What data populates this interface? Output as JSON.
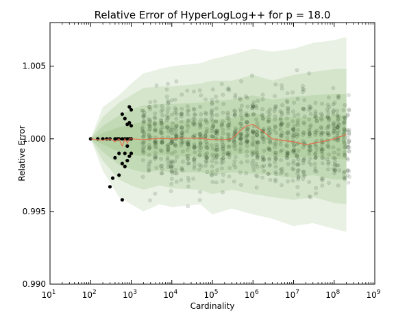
{
  "chart_data": {
    "type": "scatter",
    "title": "Relative Error of HyperLogLog++ for p = 18.0",
    "xlabel": "Cardinality",
    "ylabel": "Relative Error",
    "x_scale": "log",
    "xlim_exponent": [
      1,
      9
    ],
    "ylim": [
      0.99,
      1.008
    ],
    "x_ticks": [
      {
        "base": "10",
        "exp": "1"
      },
      {
        "base": "10",
        "exp": "2"
      },
      {
        "base": "10",
        "exp": "3"
      },
      {
        "base": "10",
        "exp": "4"
      },
      {
        "base": "10",
        "exp": "5"
      },
      {
        "base": "10",
        "exp": "6"
      },
      {
        "base": "10",
        "exp": "7"
      },
      {
        "base": "10",
        "exp": "8"
      },
      {
        "base": "10",
        "exp": "9"
      }
    ],
    "y_ticks": [
      "0.990",
      "0.995",
      "1.000",
      "1.005"
    ],
    "y_tick_values": [
      0.99,
      0.995,
      1.0,
      1.005
    ],
    "grid": false,
    "colors": {
      "band": "#5a9a3a",
      "median": "#e8704c",
      "point": "#000000"
    },
    "median_line": {
      "x": [
        100,
        200,
        300,
        400,
        500,
        600,
        700,
        800,
        900,
        1000,
        2000,
        5000,
        10000,
        20000,
        50000,
        100000,
        200000,
        300000,
        500000,
        700000,
        1000000,
        2000000,
        3000000,
        5000000,
        10000000,
        20000000,
        50000000,
        100000000,
        200000000
      ],
      "y": [
        1.0,
        0.9999,
        1.0,
        0.9998,
        1.0,
        0.9995,
        1.0,
        0.9997,
        1.0,
        1.0,
        0.99995,
        1.00003,
        1.0,
        1.00005,
        1.00003,
        0.99995,
        0.99995,
        1.0,
        1.0006,
        1.0009,
        1.001,
        1.0004,
        1.0,
        0.9999,
        0.9998,
        0.9996,
        0.9998,
        1.0,
        1.0003
      ]
    },
    "percentile_bands": [
      {
        "x": [
          100,
          200,
          500,
          1000,
          2000,
          5000,
          10000,
          50000,
          100000,
          300000,
          1000000,
          3000000,
          10000000,
          30000000,
          100000000,
          200000000
        ],
        "lower": [
          1.0,
          0.9978,
          0.996,
          0.9955,
          0.995,
          0.9955,
          0.9953,
          0.9955,
          0.9948,
          0.9952,
          0.9948,
          0.9945,
          0.994,
          0.9942,
          0.9938,
          0.9936
        ],
        "upper": [
          1.0,
          1.0022,
          1.003,
          1.0038,
          1.0045,
          1.0048,
          1.005,
          1.0052,
          1.0055,
          1.0058,
          1.0062,
          1.006,
          1.0062,
          1.0066,
          1.0068,
          1.007
        ]
      },
      {
        "x": [
          100,
          200,
          500,
          1000,
          2000,
          5000,
          10000,
          50000,
          100000,
          300000,
          1000000,
          3000000,
          10000000,
          30000000,
          100000000,
          200000000
        ],
        "lower": [
          1.0,
          0.9985,
          0.9972,
          0.9968,
          0.9965,
          0.9968,
          0.9966,
          0.9965,
          0.9962,
          0.9965,
          0.9962,
          0.996,
          0.9958,
          0.996,
          0.9956,
          0.9955
        ],
        "upper": [
          1.0,
          1.0015,
          1.0025,
          1.003,
          1.0035,
          1.0036,
          1.0036,
          1.0038,
          1.004,
          1.004,
          1.0044,
          1.004,
          1.0044,
          1.0046,
          1.0048,
          1.0048
        ]
      },
      {
        "x": [
          100,
          200,
          500,
          1000,
          2000,
          5000,
          10000,
          50000,
          100000,
          300000,
          1000000,
          3000000,
          10000000,
          30000000,
          100000000,
          200000000
        ],
        "lower": [
          1.0,
          0.9991,
          0.9982,
          0.9979,
          0.9977,
          0.9978,
          0.9977,
          0.9977,
          0.9975,
          0.9977,
          0.9976,
          0.9975,
          0.9973,
          0.9975,
          0.9972,
          0.9972
        ],
        "upper": [
          1.0,
          1.0009,
          1.0016,
          1.002,
          1.0023,
          1.0024,
          1.0024,
          1.0025,
          1.0026,
          1.0027,
          1.003,
          1.0027,
          1.0029,
          1.003,
          1.0031,
          1.0031
        ]
      },
      {
        "x": [
          100,
          200,
          500,
          1000,
          2000,
          5000,
          10000,
          50000,
          100000,
          300000,
          1000000,
          3000000,
          10000000,
          30000000,
          100000000,
          200000000
        ],
        "lower": [
          1.0,
          0.9996,
          0.9991,
          0.9989,
          0.9988,
          0.9989,
          0.9988,
          0.9988,
          0.9987,
          0.9989,
          0.999,
          0.9988,
          0.9987,
          0.9988,
          0.9986,
          0.9986
        ],
        "upper": [
          1.0,
          1.0004,
          1.0008,
          1.001,
          1.0012,
          1.0012,
          1.0012,
          1.0013,
          1.0013,
          1.0014,
          1.0018,
          1.0014,
          1.0015,
          1.0015,
          1.0016,
          1.0016
        ]
      }
    ],
    "low_cardinality_points": [
      {
        "x": 100,
        "y": 1.0
      },
      {
        "x": 150,
        "y": 1.0
      },
      {
        "x": 200,
        "y": 1.0
      },
      {
        "x": 250,
        "y": 1.0
      },
      {
        "x": 300,
        "y": 0.9967
      },
      {
        "x": 300,
        "y": 1.0
      },
      {
        "x": 350,
        "y": 0.9973
      },
      {
        "x": 400,
        "y": 0.9987
      },
      {
        "x": 400,
        "y": 1.0
      },
      {
        "x": 450,
        "y": 1.0
      },
      {
        "x": 500,
        "y": 0.9975
      },
      {
        "x": 500,
        "y": 0.999
      },
      {
        "x": 500,
        "y": 1.0
      },
      {
        "x": 600,
        "y": 0.9958
      },
      {
        "x": 600,
        "y": 0.9983
      },
      {
        "x": 600,
        "y": 1.0
      },
      {
        "x": 600,
        "y": 1.0017
      },
      {
        "x": 700,
        "y": 0.9981
      },
      {
        "x": 700,
        "y": 0.999
      },
      {
        "x": 700,
        "y": 1.0
      },
      {
        "x": 700,
        "y": 1.0014
      },
      {
        "x": 800,
        "y": 0.9985
      },
      {
        "x": 800,
        "y": 0.9995
      },
      {
        "x": 800,
        "y": 1.0
      },
      {
        "x": 800,
        "y": 1.001
      },
      {
        "x": 900,
        "y": 0.9988
      },
      {
        "x": 900,
        "y": 1.0
      },
      {
        "x": 900,
        "y": 1.0011
      },
      {
        "x": 900,
        "y": 1.0022
      },
      {
        "x": 1000,
        "y": 0.999
      },
      {
        "x": 1000,
        "y": 1.0
      },
      {
        "x": 1000,
        "y": 1.0009
      },
      {
        "x": 1000,
        "y": 1.002
      }
    ],
    "scatter_columns": {
      "x_exponents": [
        3.3,
        3.45,
        3.6,
        3.75,
        3.9,
        4.0,
        4.1,
        4.25,
        4.4,
        4.55,
        4.7,
        4.85,
        5.0,
        5.1,
        5.25,
        5.4,
        5.55,
        5.7,
        5.85,
        6.0,
        6.1,
        6.25,
        6.4,
        6.55,
        6.7,
        6.85,
        7.0,
        7.1,
        7.25,
        7.4,
        7.55,
        7.7,
        7.85,
        8.0,
        8.1,
        8.25,
        8.35
      ],
      "points_per_column": 28,
      "spread_std": 0.0016
    }
  }
}
